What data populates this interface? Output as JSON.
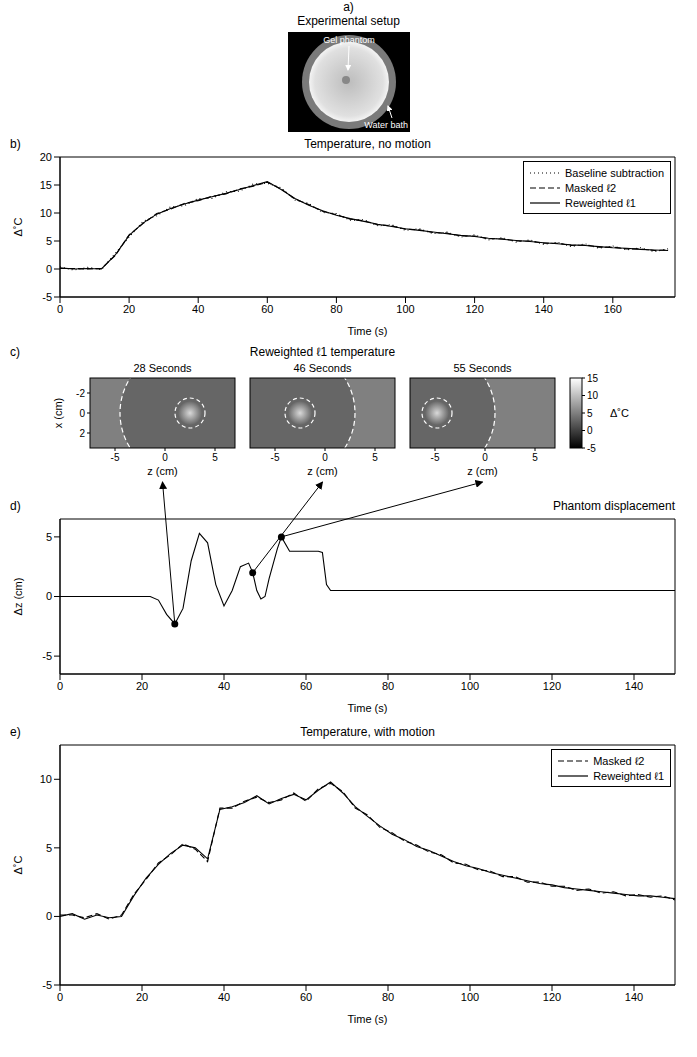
{
  "chart_data": [
    {
      "type": "image",
      "label": "a)",
      "title": "Experimental setup",
      "annotations": [
        "Gel phantom",
        "Water bath"
      ]
    },
    {
      "type": "line",
      "label": "b)",
      "title": "Temperature, no motion",
      "x_label": "Time (s)",
      "y_label": "Δ˚C",
      "xlim": [
        0,
        178
      ],
      "xticks": [
        0,
        20,
        40,
        60,
        80,
        100,
        120,
        140,
        160
      ],
      "ylim": [
        -5,
        20
      ],
      "yticks": [
        -5,
        0,
        5,
        10,
        15,
        20
      ],
      "legend": "upper right",
      "x": [
        0,
        4,
        8,
        12,
        16,
        20,
        24,
        28,
        32,
        36,
        40,
        44,
        48,
        52,
        56,
        60,
        64,
        68,
        72,
        76,
        80,
        84,
        88,
        92,
        96,
        100,
        104,
        108,
        112,
        116,
        120,
        124,
        128,
        132,
        136,
        140,
        144,
        148,
        152,
        156,
        160,
        164,
        168,
        172,
        176
      ],
      "series": [
        {
          "name": "Baseline subtraction",
          "color": "#000000",
          "line_style": "dotted",
          "values": [
            0.4,
            -0.2,
            0.3,
            -0.1,
            2.8,
            5.7,
            8.5,
            9.5,
            11.1,
            11.3,
            12.6,
            12.6,
            13.8,
            13.9,
            15.2,
            15.3,
            14.5,
            12.3,
            11.7,
            10.1,
            9.9,
            8.7,
            8.8,
            7.7,
            7.9,
            6.9,
            7.2,
            6.3,
            6.6,
            5.7,
            6.1,
            5.2,
            5.6,
            4.8,
            5.2,
            4.4,
            4.8,
            4.0,
            4.5,
            3.7,
            4.1,
            3.4,
            3.8,
            3.1,
            3.6
          ]
        },
        {
          "name": "Masked ℓ2",
          "color": "#000000",
          "line_style": "dashed",
          "values": [
            0.1,
            0.1,
            0,
            0.1,
            2.4,
            6.1,
            8.1,
            9.9,
            10.7,
            11.7,
            12.2,
            13.0,
            13.4,
            14.3,
            14.8,
            15.5,
            14.3,
            12.5,
            11.5,
            10.3,
            9.7,
            8.9,
            8.6,
            7.9,
            7.7,
            7.1,
            7.0,
            6.5,
            6.4,
            5.9,
            5.9,
            5.4,
            5.4,
            5.0,
            5.0,
            4.6,
            4.6,
            4.2,
            4.3,
            3.9,
            3.9,
            3.6,
            3.6,
            3.3,
            3.4
          ]
        },
        {
          "name": "Reweighted ℓ1",
          "color": "#000000",
          "line_style": "solid",
          "values": [
            0.2,
            0,
            0.1,
            0,
            2.5,
            6,
            8.2,
            9.8,
            10.8,
            11.6,
            12.3,
            12.9,
            13.5,
            14.2,
            14.9,
            15.6,
            14.2,
            12.6,
            11.4,
            10.4,
            9.6,
            9.0,
            8.5,
            8.0,
            7.6,
            7.2,
            6.9,
            6.6,
            6.3,
            6.0,
            5.8,
            5.5,
            5.3,
            5.1,
            4.9,
            4.7,
            4.5,
            4.3,
            4.2,
            4.0,
            3.8,
            3.7,
            3.5,
            3.4,
            3.3
          ]
        }
      ]
    },
    {
      "type": "heatmap",
      "label": "c)",
      "title": "Reweighted ℓ1 temperature",
      "x_label": "z (cm)",
      "y_label": "x (cm)",
      "xlim": [
        -7.5,
        7
      ],
      "xticks": [
        -5,
        0,
        5
      ],
      "ylim": [
        -3.5,
        3.5
      ],
      "yticks": [
        -2,
        0,
        2
      ],
      "colorbar": {
        "range": [
          -5,
          15
        ],
        "ticks": [
          -5,
          0,
          5,
          10,
          15
        ],
        "label": "Δ˚C"
      },
      "frames": [
        {
          "title": "28 Seconds",
          "hotspot": {
            "z": 2.5,
            "x": 0,
            "peak": 12,
            "ring_radius": 1.5
          },
          "phantom": {
            "z": 2,
            "x": 0,
            "radius": 6.5
          },
          "phantom_value": 3,
          "bath_value": 5
        },
        {
          "title": "46 Seconds",
          "hotspot": {
            "z": -2.5,
            "x": 0,
            "peak": 12,
            "ring_radius": 1.5
          },
          "phantom": {
            "z": -3.5,
            "x": 0,
            "radius": 6.5
          },
          "phantom_value": 3,
          "bath_value": 5
        },
        {
          "title": "55 Seconds",
          "hotspot": {
            "z": -4.8,
            "x": 0,
            "peak": 12,
            "ring_radius": 1.5
          },
          "phantom": {
            "z": -5.5,
            "x": 0,
            "radius": 6.5
          },
          "phantom_value": 3,
          "bath_value": 5
        }
      ]
    },
    {
      "type": "line",
      "label": "d)",
      "title": "Phantom displacement",
      "x_label": "Time (s)",
      "y_label": "Δz (cm)",
      "xlim": [
        0,
        150
      ],
      "xticks": [
        0,
        20,
        40,
        60,
        80,
        100,
        120,
        140
      ],
      "ylim": [
        -6.5,
        6.5
      ],
      "yticks": [
        -5,
        0,
        5
      ],
      "x": [
        0,
        22,
        24,
        26,
        28,
        30,
        32,
        34,
        36,
        38,
        40,
        42,
        44,
        46,
        47,
        48,
        49,
        50,
        51,
        53,
        54,
        56,
        63,
        64,
        65,
        66,
        67,
        150
      ],
      "series": [
        {
          "color": "#000000",
          "line_style": "solid",
          "values": [
            0,
            0,
            -0.3,
            -1.5,
            -2.3,
            -1,
            3,
            5.3,
            4.5,
            1,
            -0.8,
            0.5,
            2.5,
            2.8,
            2,
            0.5,
            -0.2,
            0,
            1.5,
            4,
            5,
            3.8,
            3.8,
            3.7,
            1,
            0.5,
            0.5,
            0.5
          ]
        }
      ],
      "highlights": {
        "x": [
          28,
          47,
          54
        ],
        "y": [
          -2.3,
          2,
          5
        ]
      }
    },
    {
      "type": "line",
      "label": "e)",
      "title": "Temperature, with motion",
      "x_label": "Time (s)",
      "y_label": "Δ˚C",
      "xlim": [
        0,
        150
      ],
      "xticks": [
        0,
        20,
        40,
        60,
        80,
        100,
        120,
        140
      ],
      "ylim": [
        -5,
        12.5
      ],
      "yticks": [
        -5,
        0,
        5,
        10
      ],
      "legend": "upper right",
      "x": [
        0,
        3,
        6,
        9,
        12,
        15,
        18,
        21,
        24,
        27,
        30,
        33,
        36,
        39,
        42,
        45,
        48,
        51,
        54,
        57,
        60,
        63,
        66,
        69,
        72,
        75,
        78,
        81,
        84,
        87,
        90,
        93,
        96,
        99,
        102,
        105,
        108,
        111,
        114,
        117,
        120,
        123,
        126,
        129,
        132,
        135,
        138,
        141,
        144,
        147,
        150
      ],
      "series": [
        {
          "name": "Masked ℓ2",
          "color": "#000000",
          "line_style": "dashed",
          "values": [
            0.1,
            0.1,
            -0.1,
            0.2,
            -0.2,
            0.1,
            1.6,
            2.7,
            3.9,
            4.5,
            5.3,
            4.9,
            4.0,
            7.9,
            7.9,
            8.4,
            8.7,
            8.3,
            8.5,
            9.0,
            8.4,
            9.3,
            9.7,
            9.1,
            7.9,
            7.4,
            6.5,
            6.1,
            5.5,
            5.2,
            4.7,
            4.5,
            3.9,
            3.8,
            3.4,
            3.3,
            2.9,
            2.9,
            2.5,
            2.5,
            2.2,
            2.2,
            1.9,
            2.0,
            1.7,
            1.8,
            1.5,
            1.6,
            1.4,
            1.5,
            1.2
          ]
        },
        {
          "name": "Reweighted ℓ1",
          "color": "#000000",
          "line_style": "solid",
          "values": [
            0,
            0.2,
            -0.2,
            0.1,
            -0.1,
            0,
            1.5,
            2.8,
            3.8,
            4.6,
            5.2,
            5.0,
            4.2,
            7.8,
            8.0,
            8.3,
            8.8,
            8.2,
            8.6,
            8.9,
            8.5,
            9.2,
            9.8,
            9.0,
            8.0,
            7.3,
            6.6,
            6.0,
            5.6,
            5.1,
            4.8,
            4.4,
            4.0,
            3.7,
            3.5,
            3.2,
            3.0,
            2.8,
            2.6,
            2.4,
            2.3,
            2.1,
            2.0,
            1.9,
            1.8,
            1.7,
            1.6,
            1.5,
            1.5,
            1.4,
            1.3
          ]
        }
      ]
    }
  ]
}
